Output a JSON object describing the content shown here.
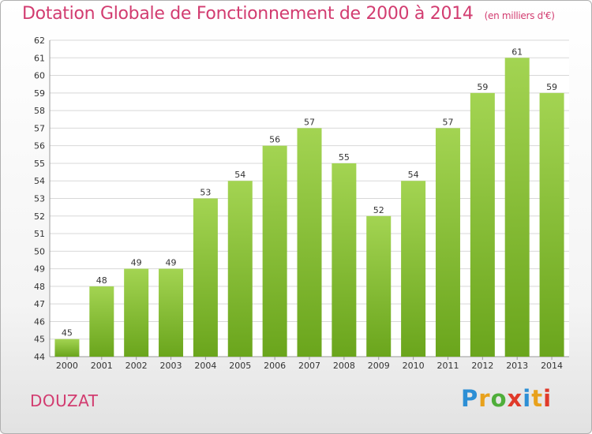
{
  "header": {
    "title": "Dotation Globale de Fonctionnement de 2000 à 2014",
    "unit": "(en milliers d'€)"
  },
  "footer": {
    "commune": "DOUZAT",
    "logo_text": "Proxiti",
    "logo_colors": [
      "#2d8fd5",
      "#e8a11c",
      "#4fae3a",
      "#e03a2a",
      "#2d8fd5",
      "#e8a11c",
      "#e03a2a"
    ]
  },
  "colors": {
    "title": "#d23c70",
    "bar_light": "#a3d452",
    "bar_dark": "#6aa51c",
    "grid": "#d8d8d8",
    "axis_text": "#333333"
  },
  "chart_data": {
    "type": "bar",
    "title": "Dotation Globale de Fonctionnement de 2000 à 2014",
    "subtitle": "(en milliers d'€)",
    "categories": [
      "2000",
      "2001",
      "2002",
      "2003",
      "2004",
      "2005",
      "2006",
      "2007",
      "2008",
      "2009",
      "2010",
      "2011",
      "2012",
      "2013",
      "2014"
    ],
    "values": [
      45,
      48,
      49,
      49,
      53,
      54,
      56,
      57,
      55,
      52,
      54,
      57,
      59,
      61,
      59
    ],
    "ylim": [
      44,
      62
    ],
    "ytick_step": 1,
    "grid": true,
    "legend": "none"
  }
}
